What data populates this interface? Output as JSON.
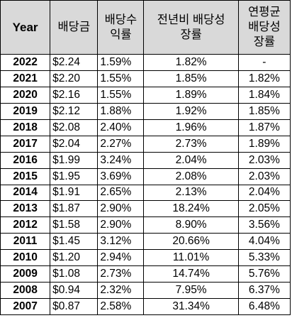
{
  "header": {
    "year": "Year",
    "dividend": "배당금",
    "yield_line1": "배당수",
    "yield_line2": "익률",
    "yoy_line1": "전년비 배당성",
    "yoy_line2": "장률",
    "cagr_line1": "연평균",
    "cagr_line2": "배당성",
    "cagr_line3": "장률"
  },
  "rows": [
    {
      "year": "2022",
      "dividend": "$2.24",
      "yield": "1.59%",
      "yoy": "1.82%",
      "cagr": "-"
    },
    {
      "year": "2021",
      "dividend": "$2.20",
      "yield": "1.55%",
      "yoy": "1.85%",
      "cagr": "1.82%"
    },
    {
      "year": "2020",
      "dividend": "$2.16",
      "yield": "1.55%",
      "yoy": "1.89%",
      "cagr": "1.84%"
    },
    {
      "year": "2019",
      "dividend": "$2.12",
      "yield": "1.88%",
      "yoy": "1.92%",
      "cagr": "1.85%"
    },
    {
      "year": "2018",
      "dividend": "$2.08",
      "yield": "2.40%",
      "yoy": "1.96%",
      "cagr": "1.87%"
    },
    {
      "year": "2017",
      "dividend": "$2.04",
      "yield": "2.27%",
      "yoy": "2.73%",
      "cagr": "1.89%"
    },
    {
      "year": "2016",
      "dividend": "$1.99",
      "yield": "3.24%",
      "yoy": "2.04%",
      "cagr": "2.03%"
    },
    {
      "year": "2015",
      "dividend": "$1.95",
      "yield": "3.69%",
      "yoy": "2.08%",
      "cagr": "2.03%"
    },
    {
      "year": "2014",
      "dividend": "$1.91",
      "yield": "2.65%",
      "yoy": "2.13%",
      "cagr": "2.04%"
    },
    {
      "year": "2013",
      "dividend": "$1.87",
      "yield": "2.90%",
      "yoy": "18.24%",
      "cagr": "2.05%"
    },
    {
      "year": "2012",
      "dividend": "$1.58",
      "yield": "2.90%",
      "yoy": "8.90%",
      "cagr": "3.56%"
    },
    {
      "year": "2011",
      "dividend": "$1.45",
      "yield": "3.12%",
      "yoy": "20.66%",
      "cagr": "4.04%"
    },
    {
      "year": "2010",
      "dividend": "$1.20",
      "yield": "2.94%",
      "yoy": "11.01%",
      "cagr": "5.33%"
    },
    {
      "year": "2009",
      "dividend": "$1.08",
      "yield": "2.73%",
      "yoy": "14.74%",
      "cagr": "5.76%"
    },
    {
      "year": "2008",
      "dividend": "$0.94",
      "yield": "2.32%",
      "yoy": "7.95%",
      "cagr": "6.37%"
    },
    {
      "year": "2007",
      "dividend": "$0.87",
      "yield": "2.58%",
      "yoy": "31.34%",
      "cagr": "6.48%"
    }
  ]
}
